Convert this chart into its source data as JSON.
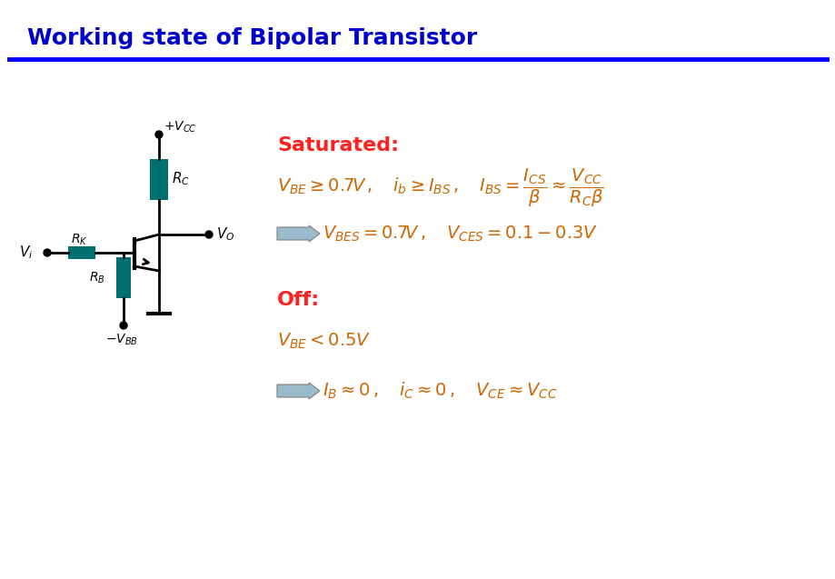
{
  "title": "Working state of Bipolar Transistor",
  "title_color": "#0000CC",
  "title_fontsize": 18,
  "header_line_color": "#0000FF",
  "bg_color": "#FFFFFF",
  "circuit_color": "#000000",
  "resistor_color": "#007070",
  "saturated_label": "Saturated:",
  "off_label": "Off:",
  "label_color": "#FF2020",
  "formula_color": "#CC6600",
  "arrow_fill": "#99BBCC"
}
